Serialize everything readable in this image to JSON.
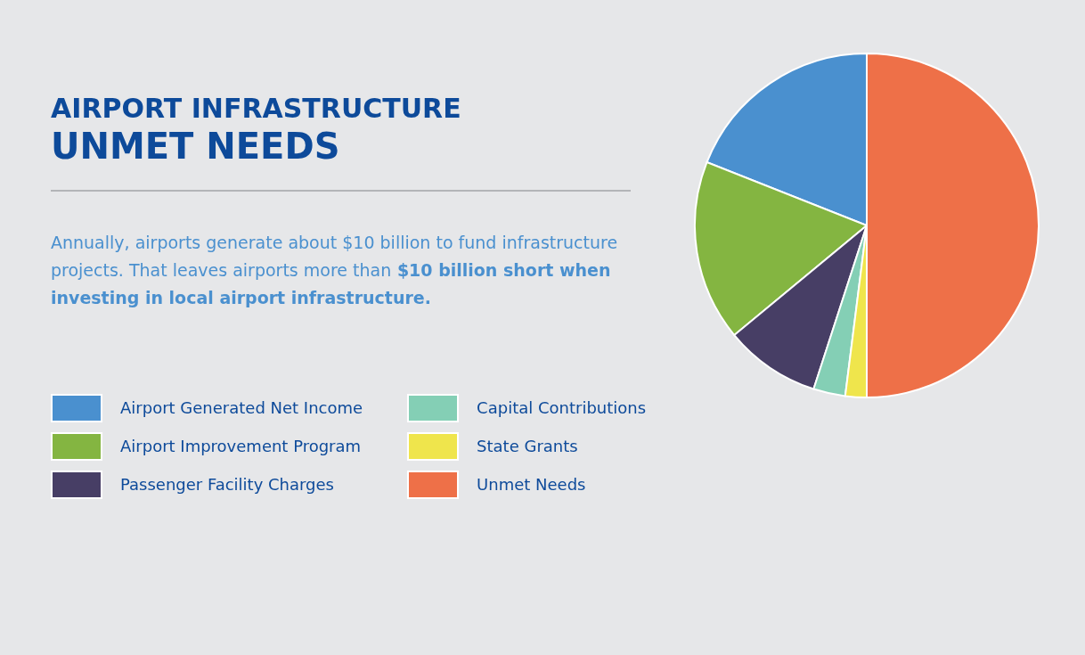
{
  "chart_data": {
    "type": "pie",
    "title": "AIRPORT INFRASTRUCTURE",
    "subtitle": "UNMET NEEDS",
    "annotations": [
      "Annually, airports generate about $10 billion to fund infrastructure projects. That leaves airports more than",
      "$10 billion short when investing in local airport infrastructure."
    ],
    "categories": [
      "Airport Generated Net Income",
      "Airport Improvement Program",
      "Passenger Facility Charges",
      "Capital Contributions",
      "State Grants",
      "Unmet Needs"
    ],
    "values": [
      19,
      17,
      9,
      3,
      2,
      50
    ],
    "colors": [
      "#4a90cf",
      "#84b541",
      "#473e65",
      "#84cfb5",
      "#efe54c",
      "#ee7048"
    ],
    "legend": "left"
  }
}
